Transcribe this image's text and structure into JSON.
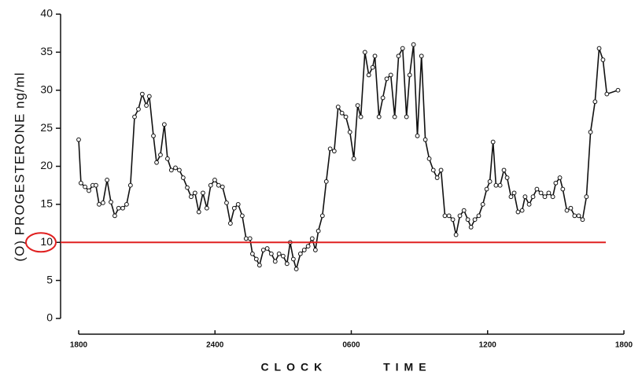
{
  "chart_data": {
    "type": "line",
    "y_label": "(O) PROGESTERONE  ng/ml",
    "x_label": "CLOCK TIME",
    "xlim": [
      0,
      24
    ],
    "xticks": [
      {
        "value": 0,
        "label": "1800"
      },
      {
        "value": 6,
        "label": "2400"
      },
      {
        "value": 12,
        "label": "0600"
      },
      {
        "value": 18,
        "label": "1200"
      },
      {
        "value": 24,
        "label": "1800"
      }
    ],
    "ylim": [
      0,
      40
    ],
    "yticks": [
      0,
      5,
      10,
      15,
      20,
      25,
      30,
      35,
      40
    ],
    "reference_line": {
      "value": 10,
      "color": "#e02020"
    },
    "color": "#111111",
    "x": [
      0,
      0.1,
      0.28,
      0.45,
      0.62,
      0.76,
      0.9,
      1.07,
      1.25,
      1.42,
      1.59,
      1.76,
      1.94,
      2.11,
      2.28,
      2.46,
      2.63,
      2.8,
      2.98,
      3.11,
      3.29,
      3.43,
      3.6,
      3.77,
      3.91,
      4.08,
      4.26,
      4.43,
      4.6,
      4.78,
      4.95,
      5.12,
      5.29,
      5.47,
      5.64,
      5.81,
      5.99,
      6.16,
      6.33,
      6.51,
      6.68,
      6.85,
      7.02,
      7.2,
      7.37,
      7.54,
      7.65,
      7.82,
      7.96,
      8.13,
      8.3,
      8.48,
      8.65,
      8.82,
      9.0,
      9.17,
      9.31,
      9.45,
      9.58,
      9.76,
      9.93,
      10.1,
      10.28,
      10.42,
      10.55,
      10.73,
      10.9,
      11.07,
      11.25,
      11.42,
      11.59,
      11.76,
      11.94,
      12.11,
      12.28,
      12.42,
      12.6,
      12.77,
      12.94,
      13.04,
      13.22,
      13.39,
      13.56,
      13.74,
      13.91,
      14.08,
      14.26,
      14.43,
      14.57,
      14.74,
      14.91,
      15.09,
      15.26,
      15.43,
      15.61,
      15.78,
      15.95,
      16.12,
      16.3,
      16.47,
      16.61,
      16.78,
      16.96,
      17.13,
      17.27,
      17.44,
      17.61,
      17.79,
      17.96,
      18.1,
      18.24,
      18.37,
      18.55,
      18.72,
      18.86,
      19.03,
      19.17,
      19.34,
      19.52,
      19.65,
      19.83,
      20.0,
      20.17,
      20.35,
      20.52,
      20.69,
      20.87,
      21.0,
      21.18,
      21.31,
      21.49,
      21.66,
      21.83,
      22.01,
      22.18,
      22.35,
      22.53,
      22.73,
      22.91,
      23.08,
      23.25,
      23.74
    ],
    "values": [
      23.5,
      17.8,
      17.3,
      16.8,
      17.5,
      17.5,
      15,
      15.2,
      18.2,
      15.3,
      13.5,
      14.5,
      14.5,
      15,
      17.5,
      26.5,
      27.5,
      29.5,
      28,
      29.2,
      24,
      20.5,
      21.5,
      25.5,
      21,
      19.5,
      19.8,
      19.5,
      18.5,
      17.2,
      16,
      16.5,
      14,
      16.5,
      14.5,
      17.5,
      18.2,
      17.5,
      17.3,
      15.2,
      12.5,
      14.5,
      15,
      13.5,
      10.5,
      10.5,
      8.5,
      7.8,
      7,
      9,
      9.2,
      8.5,
      7.5,
      8.5,
      8.2,
      7.2,
      10,
      7.8,
      6.5,
      8.5,
      9,
      9.5,
      10.5,
      9,
      11.5,
      13.5,
      18,
      22.3,
      22,
      27.8,
      27,
      26.5,
      24.5,
      21,
      28,
      26.5,
      35,
      32,
      33,
      34.5,
      26.5,
      29,
      31.5,
      32,
      26.5,
      34.5,
      35.5,
      26.5,
      32,
      36,
      24,
      34.5,
      23.5,
      21,
      19.5,
      18.5,
      19.5,
      13.5,
      13.5,
      13,
      11,
      13.5,
      14.2,
      13,
      12,
      13,
      13.5,
      15,
      17,
      18,
      23.2,
      17.5,
      17.5,
      19.5,
      18.5,
      16,
      16.5,
      14,
      14.2,
      16,
      15,
      16,
      17,
      16.5,
      16,
      16.5,
      16,
      17.8,
      18.5,
      17,
      14.2,
      14.5,
      13.5,
      13.5,
      13,
      16,
      24.5,
      28.5,
      35.5,
      34,
      29.5,
      30
    ]
  }
}
